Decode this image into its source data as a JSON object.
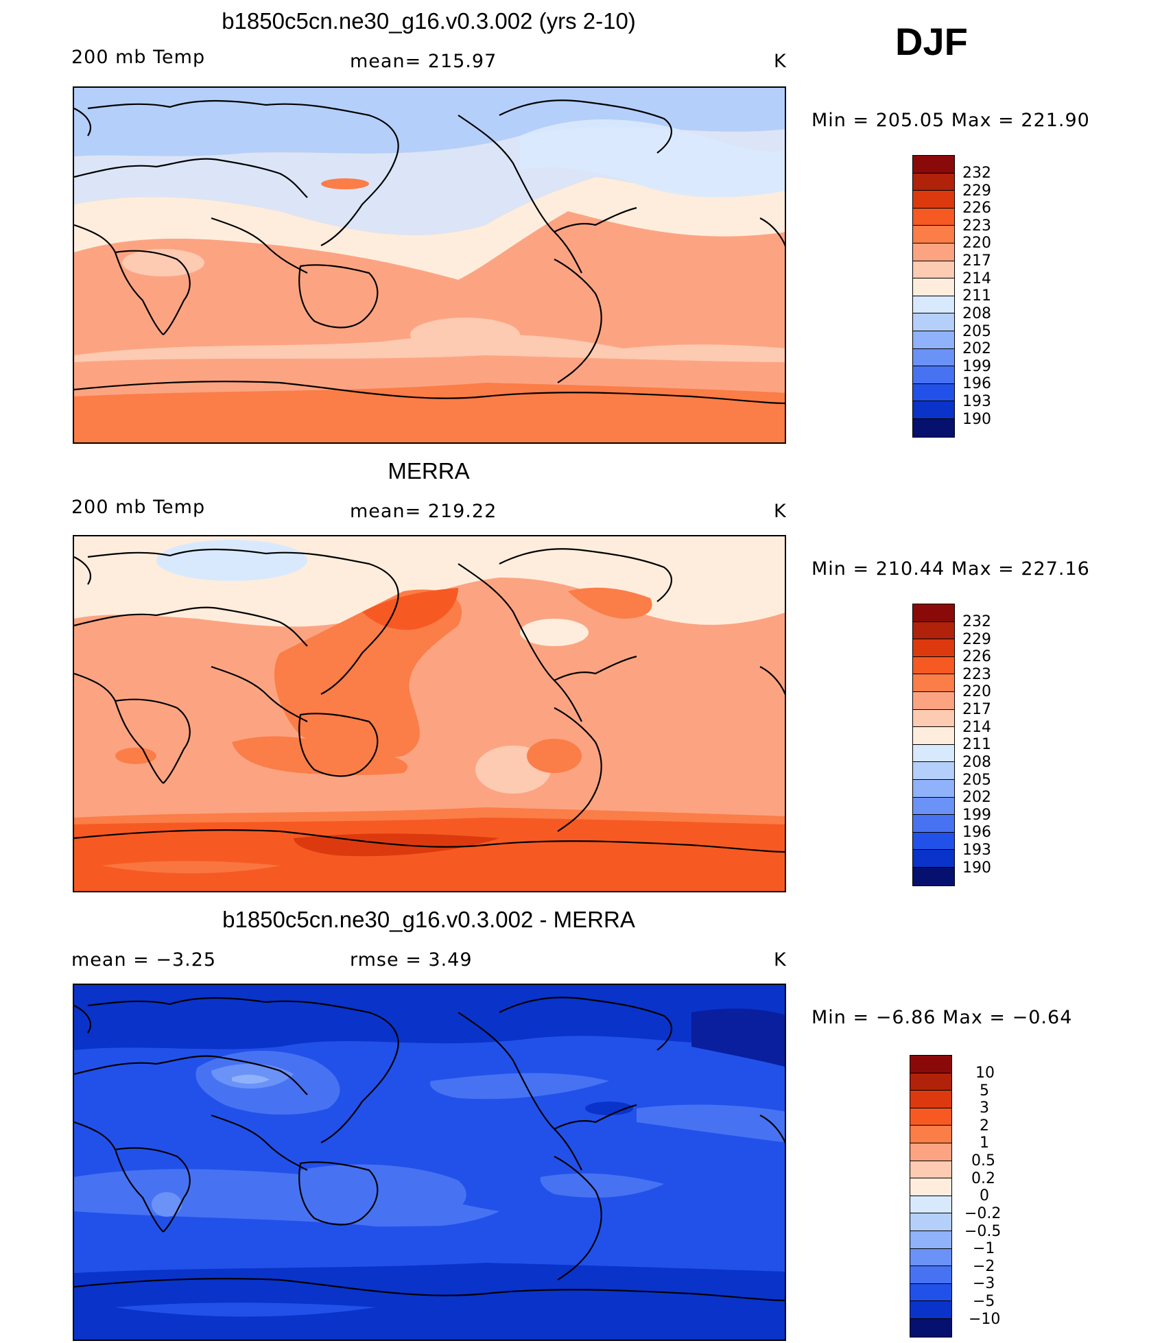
{
  "season": "DJF",
  "panels": [
    {
      "title": "b1850c5cn.ne30_g16.v0.3.002 (yrs 2-10)",
      "left_label": "200 mb Temp",
      "center_label": "mean= 215.97",
      "right_label": "K",
      "minmax": "Min  =  205.05  Max  =  221.90",
      "colorbar_labels": [
        "232",
        "229",
        "226",
        "223",
        "220",
        "217",
        "214",
        "211",
        "208",
        "205",
        "202",
        "199",
        "196",
        "193",
        "190"
      ]
    },
    {
      "title": "MERRA",
      "left_label": "200 mb Temp",
      "center_label": "mean= 219.22",
      "right_label": "K",
      "minmax": "Min  =  210.44  Max  =  227.16",
      "colorbar_labels": [
        "232",
        "229",
        "226",
        "223",
        "220",
        "217",
        "214",
        "211",
        "208",
        "205",
        "202",
        "199",
        "196",
        "193",
        "190"
      ]
    },
    {
      "title": "b1850c5cn.ne30_g16.v0.3.002 - MERRA",
      "left_label": "mean =   −3.25",
      "center_label": "rmse =    3.49",
      "right_label": "K",
      "minmax": "Min  =   −6.86  Max  =   −0.64",
      "colorbar_labels": [
        "10",
        "5",
        "3",
        "2",
        "1",
        "0.5",
        "0.2",
        "0",
        "−0.2",
        "−0.5",
        "−1",
        "−2",
        "−3",
        "−5",
        "−10"
      ]
    }
  ],
  "colors": {
    "scale": [
      "#8a0a0a",
      "#b0220a",
      "#dc3a0e",
      "#f65a22",
      "#fb7d48",
      "#fca482",
      "#fdcab2",
      "#feeddd",
      "#d9e9fd",
      "#b5cffb",
      "#8fb2fa",
      "#6b92f7",
      "#4773f3",
      "#2251ea",
      "#0a33c9",
      "#091f9e",
      "#06106f"
    ],
    "model_bands": [
      "#b5cffb",
      "#d9e9fd",
      "#feeddd",
      "#fdcab2",
      "#fca482",
      "#fb7d48"
    ],
    "merra_bands": [
      "#feeddd",
      "#fdcab2",
      "#fca482",
      "#fb7d48",
      "#f65a22",
      "#dc3a0e"
    ],
    "diff_bands": [
      "#0a33c9",
      "#2251ea",
      "#4773f3",
      "#6b92f7",
      "#8fb2fa",
      "#b5cffb"
    ]
  }
}
